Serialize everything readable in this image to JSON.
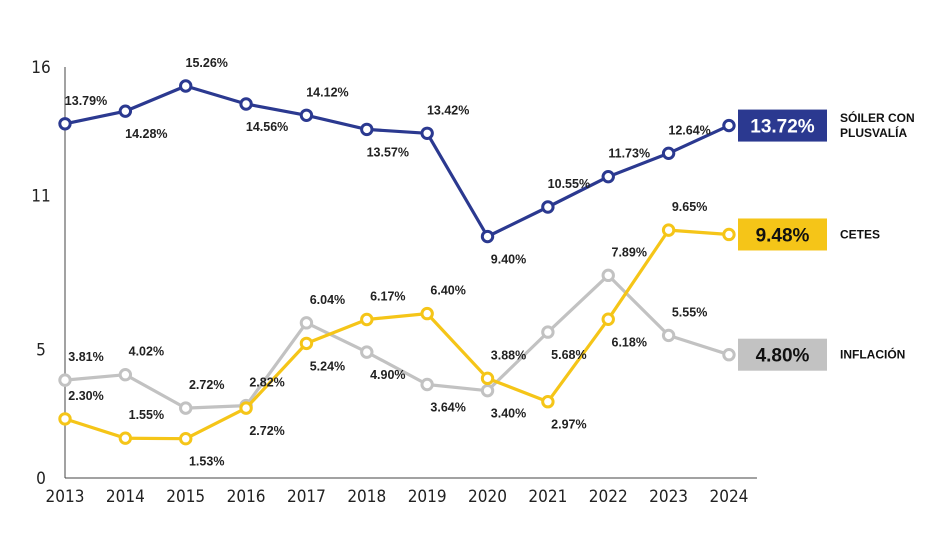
{
  "chart_data": {
    "type": "line",
    "title": "",
    "xlabel": "",
    "ylabel": "",
    "categories": [
      "2013",
      "2014",
      "2015",
      "2016",
      "2017",
      "2018",
      "2019",
      "2020",
      "2021",
      "2022",
      "2023",
      "2024"
    ],
    "y_ticks": [
      "16",
      "11",
      "5",
      "0"
    ],
    "ylim": [
      0,
      16
    ],
    "series": [
      {
        "name": "SÓILER CON PLUSVALÍA",
        "legend_lines": [
          "SÓILER CON",
          "PLUSVALÍA"
        ],
        "color": "#2b3990",
        "values": [
          13.79,
          14.28,
          15.26,
          14.56,
          14.12,
          13.57,
          13.42,
          9.4,
          10.55,
          11.73,
          12.64,
          13.72
        ],
        "labels": [
          "13.79%",
          "14.28%",
          "15.26%",
          "14.56%",
          "14.12%",
          "13.57%",
          "13.42%",
          "9.40%",
          "10.55%",
          "11.73%",
          "12.64%",
          ""
        ],
        "label_pos": [
          "above",
          "below",
          "above",
          "below",
          "above",
          "below",
          "above",
          "below",
          "above",
          "above",
          "above",
          "none"
        ],
        "badge": "13.72%",
        "badge_text_color": "#ffffff"
      },
      {
        "name": "CETES",
        "legend_lines": [
          "CETES"
        ],
        "color": "#f5c518",
        "values": [
          2.3,
          1.55,
          1.53,
          2.72,
          5.24,
          6.17,
          6.4,
          3.88,
          2.97,
          6.18,
          9.65,
          9.48
        ],
        "labels": [
          "2.30%",
          "1.55%",
          "1.53%",
          "2.72%",
          "5.24%",
          "6.17%",
          "6.40%",
          "3.88%",
          "2.97%",
          "6.18%",
          "9.65%",
          ""
        ],
        "label_pos": [
          "above",
          "above",
          "below",
          "below",
          "below",
          "above",
          "above",
          "above",
          "below",
          "below",
          "above",
          "none"
        ],
        "badge": "9.48%",
        "badge_text_color": "#111111"
      },
      {
        "name": "INFLACIÓN",
        "legend_lines": [
          "INFLACIÓN"
        ],
        "color": "#c2c2c2",
        "values": [
          3.81,
          4.02,
          2.72,
          2.82,
          6.04,
          4.9,
          3.64,
          3.4,
          5.68,
          7.89,
          5.55,
          4.8
        ],
        "labels": [
          "3.81%",
          "4.02%",
          "2.72%",
          "2.82%",
          "6.04%",
          "4.90%",
          "3.64%",
          "3.40%",
          "5.68%",
          "7.89%",
          "5.55%",
          ""
        ],
        "label_pos": [
          "above",
          "above",
          "above",
          "above",
          "above",
          "below",
          "below",
          "below",
          "below",
          "above",
          "above",
          "none"
        ],
        "badge": "4.80%",
        "badge_text_color": "#111111"
      }
    ]
  }
}
